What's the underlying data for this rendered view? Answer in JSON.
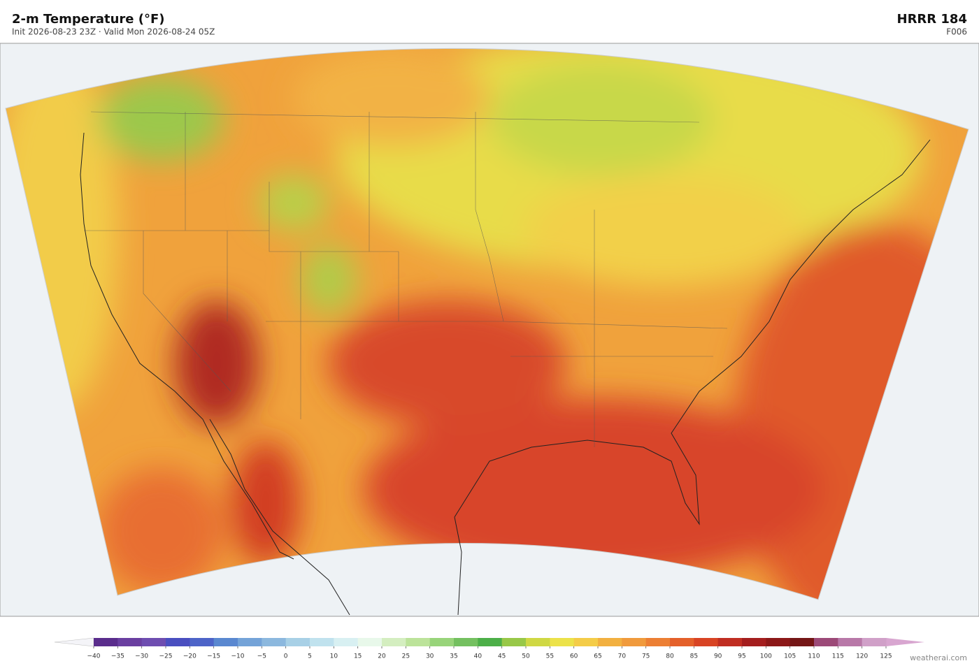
{
  "header": {
    "title": "2-m Temperature  (°F)",
    "subtitle": "Init 2026-08-23 23Z  ·  Valid Mon 2026-08-24 05Z",
    "model": "HRRR  184",
    "forecast_hour": "F006"
  },
  "colorbar": {
    "ticks": [
      {
        "value": -40,
        "label": "−40"
      },
      {
        "value": -35,
        "label": "−35"
      },
      {
        "value": -30,
        "label": "−30"
      },
      {
        "value": -25,
        "label": "−25"
      },
      {
        "value": -20,
        "label": "−20"
      },
      {
        "value": -15,
        "label": "−15"
      },
      {
        "value": -10,
        "label": "−10"
      },
      {
        "value": -5,
        "label": "−5"
      },
      0,
      5,
      10,
      15,
      20,
      25,
      30,
      35,
      40,
      45,
      50,
      55,
      60,
      65,
      70,
      75,
      80,
      85,
      90,
      95,
      100,
      105,
      110,
      115,
      120,
      125
    ],
    "colors": [
      "#5a2d8c",
      "#6a3fa0",
      "#6e4db0",
      "#4a4fc0",
      "#4d64c8",
      "#5a88d0",
      "#74a3d8",
      "#8cb8de",
      "#a8d0e6",
      "#c0e2ee",
      "#d8f0f2",
      "#e8f8ea",
      "#d4eec0",
      "#bce39a",
      "#98d47a",
      "#74c060",
      "#4caf48",
      "#98c848",
      "#cfd844",
      "#ece24a",
      "#f4cc48",
      "#f2b040",
      "#f09a3c",
      "#ec7f34",
      "#e4602a",
      "#d84424",
      "#c02e22",
      "#a41e1e",
      "#8c1818",
      "#741616",
      "#9c4a78",
      "#b878a8",
      "#d0a0c8"
    ],
    "under_color": "#f4f4f8",
    "over_color": "#d8a6d0"
  },
  "footer": {
    "credit": "weatherai.com"
  }
}
